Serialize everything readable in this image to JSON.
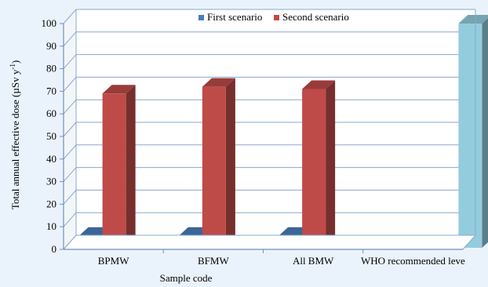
{
  "chart_data": {
    "type": "bar",
    "title": "",
    "xlabel": "Sample code",
    "ylabel_main": "Total annual effective dose (µSv y",
    "ylabel_sup": "-1",
    "ylabel_close": ")",
    "ylim": [
      0,
      100
    ],
    "yticks": [
      "0",
      "10",
      "20",
      "30",
      "40",
      "50",
      "60",
      "70",
      "80",
      "90",
      "100"
    ],
    "grid": true,
    "legend_position": "top-center",
    "categories": [
      "BPMW",
      "BFMW",
      "All BMW",
      "WHO recommended level"
    ],
    "category_labels_shown": [
      "BPMW",
      "BFMW",
      "All BMW",
      "WHO recommended leve"
    ],
    "series": [
      {
        "name": "First scenario",
        "values": [
          6,
          6,
          6,
          null
        ],
        "color": "#4a7ebb"
      },
      {
        "name": "Second scenario",
        "values": [
          69,
          72,
          71,
          null
        ],
        "color": "#be4b48"
      },
      {
        "values": [
          null,
          null,
          null,
          100
        ],
        "color": "#93cddd"
      }
    ]
  }
}
